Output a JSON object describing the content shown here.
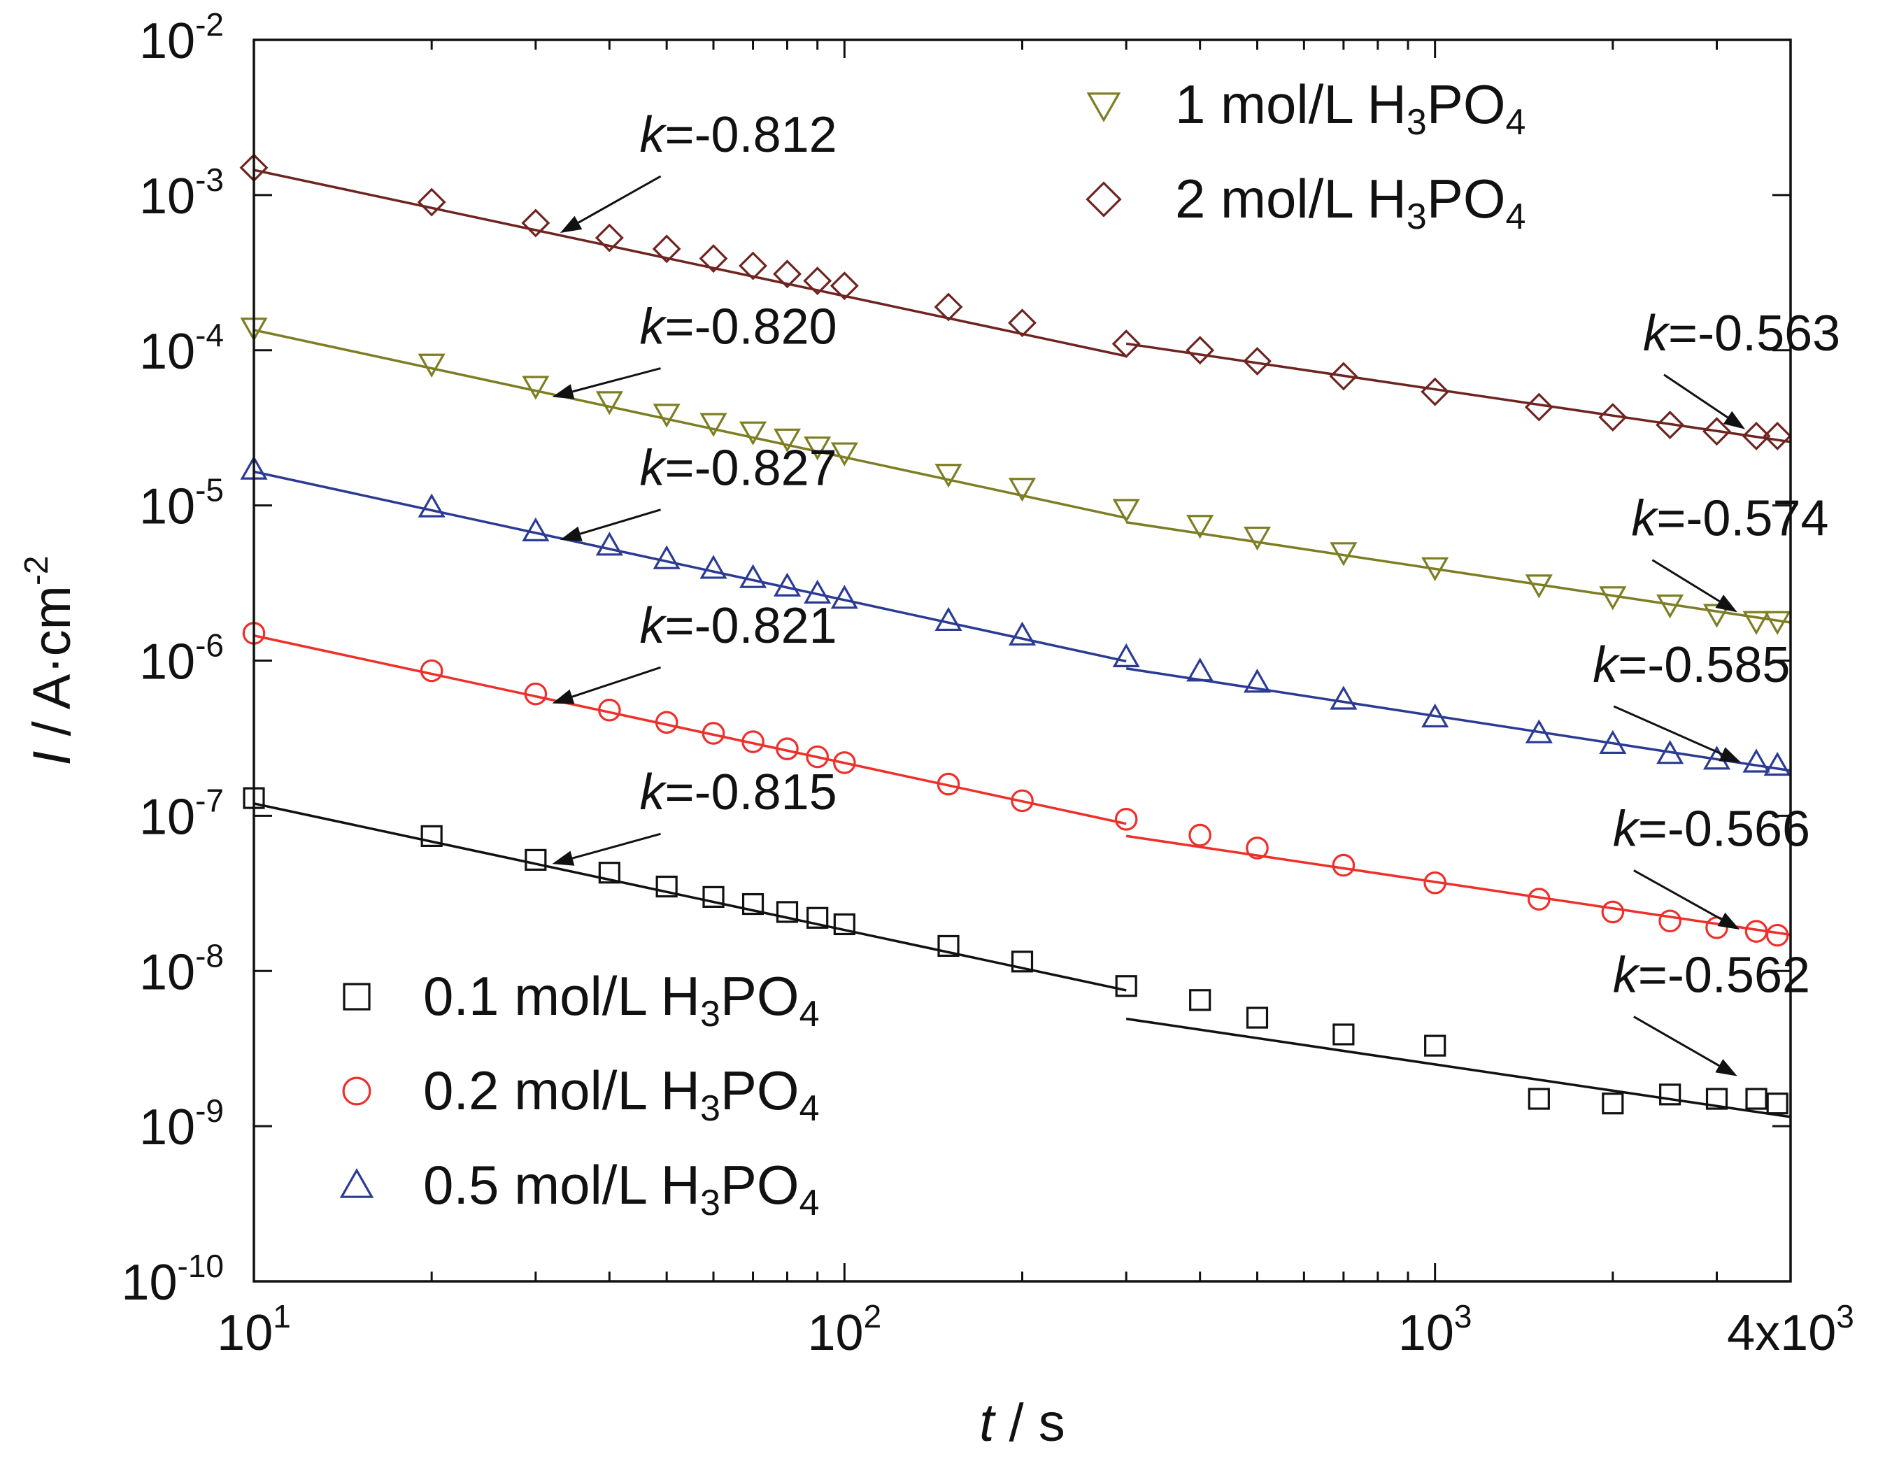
{
  "chart_data": {
    "type": "scatter",
    "title": "",
    "xlabel": {
      "italic": "t",
      "rest": " / s"
    },
    "ylabel": {
      "italic": "I",
      "rest": " / A·cm",
      "sup": "-2"
    },
    "x_scale": "log",
    "y_scale": "log",
    "xlim": [
      10,
      4000
    ],
    "ylim": [
      1e-10,
      0.01
    ],
    "grid": false,
    "x_ticks": [
      {
        "value": 10,
        "base": "10",
        "exp": "1"
      },
      {
        "value": 100,
        "base": "10",
        "exp": "2"
      },
      {
        "value": 1000,
        "base": "10",
        "exp": "3"
      },
      {
        "value": 4000,
        "base": "4x10",
        "exp": "3"
      }
    ],
    "y_ticks": [
      {
        "value": 1e-10,
        "base": "10",
        "exp": "-10"
      },
      {
        "value": 1e-09,
        "base": "10",
        "exp": "-9"
      },
      {
        "value": 1e-08,
        "base": "10",
        "exp": "-8"
      },
      {
        "value": 1e-07,
        "base": "10",
        "exp": "-7"
      },
      {
        "value": 1e-06,
        "base": "10",
        "exp": "-6"
      },
      {
        "value": 1e-05,
        "base": "10",
        "exp": "-5"
      },
      {
        "value": 0.0001,
        "base": "10",
        "exp": "-4"
      },
      {
        "value": 0.001,
        "base": "10",
        "exp": "-3"
      },
      {
        "value": 0.01,
        "base": "10",
        "exp": "-2"
      }
    ],
    "legends": [
      {
        "placement": "bottom-left",
        "items": [
          0,
          1,
          2
        ]
      },
      {
        "placement": "top-right",
        "items": [
          3,
          4
        ]
      }
    ],
    "series": [
      {
        "name": "0.1 mol/L H3PO4",
        "label": {
          "pre": "0.1 mol/L H",
          "sub1": "3",
          "mid": "PO",
          "sub2": "4"
        },
        "color": "#111111",
        "marker": "square",
        "x": [
          10,
          20,
          30,
          40,
          50,
          60,
          70,
          80,
          90,
          100,
          150,
          200,
          300,
          400,
          500,
          700,
          1000,
          1500,
          2000,
          2500,
          3000,
          3500,
          3800
        ],
        "y": [
          1.3e-07,
          7.4e-08,
          5.2e-08,
          4.3e-08,
          3.5e-08,
          3e-08,
          2.7e-08,
          2.4e-08,
          2.2e-08,
          2e-08,
          1.45e-08,
          1.15e-08,
          8e-09,
          6.5e-09,
          5e-09,
          3.9e-09,
          3.3e-09,
          1.5e-09,
          1.4e-09,
          1.6e-09,
          1.5e-09,
          1.5e-09,
          1.4e-09
        ],
        "fits": [
          {
            "k": -0.815,
            "from": 10,
            "to": 300,
            "anchor_x": 10,
            "anchor_y": 1.2e-07,
            "label": "-0.815"
          },
          {
            "k": -0.562,
            "from": 300,
            "to": 4000,
            "anchor_x": 1000,
            "anchor_y": 2.5e-09,
            "label": "-0.562"
          }
        ]
      },
      {
        "name": "0.2 mol/L H3PO4",
        "label": {
          "pre": "0.2 mol/L H",
          "sub1": "3",
          "mid": "PO",
          "sub2": "4"
        },
        "color": "#ee2f2a",
        "marker": "circle",
        "x": [
          10,
          20,
          30,
          40,
          50,
          60,
          70,
          80,
          90,
          100,
          150,
          200,
          300,
          400,
          500,
          700,
          1000,
          1500,
          2000,
          2500,
          3000,
          3500,
          3800
        ],
        "y": [
          1.5e-06,
          8.6e-07,
          6.1e-07,
          4.8e-07,
          4e-07,
          3.4e-07,
          3e-07,
          2.7e-07,
          2.4e-07,
          2.2e-07,
          1.6e-07,
          1.25e-07,
          9.5e-08,
          7.5e-08,
          6.2e-08,
          4.8e-08,
          3.7e-08,
          2.9e-08,
          2.4e-08,
          2.1e-08,
          1.9e-08,
          1.8e-08,
          1.7e-08
        ],
        "fits": [
          {
            "k": -0.821,
            "from": 10,
            "to": 300,
            "anchor_x": 10,
            "anchor_y": 1.45e-06,
            "label": "-0.821"
          },
          {
            "k": -0.566,
            "from": 300,
            "to": 4000,
            "anchor_x": 1000,
            "anchor_y": 3.75e-08,
            "label": "-0.566"
          }
        ]
      },
      {
        "name": "0.5 mol/L H3PO4",
        "label": {
          "pre": "0.5 mol/L H",
          "sub1": "3",
          "mid": "PO",
          "sub2": "4"
        },
        "color": "#2b3b93",
        "marker": "triangle-up",
        "x": [
          10,
          20,
          30,
          40,
          50,
          60,
          70,
          80,
          90,
          100,
          150,
          200,
          300,
          400,
          500,
          700,
          1000,
          1500,
          2000,
          2500,
          3000,
          3500,
          3800
        ],
        "y": [
          1.7e-05,
          9.7e-06,
          6.8e-06,
          5.5e-06,
          4.5e-06,
          3.9e-06,
          3.4e-06,
          3e-06,
          2.7e-06,
          2.5e-06,
          1.8e-06,
          1.45e-06,
          1.05e-06,
          8.5e-07,
          7.2e-07,
          5.6e-07,
          4.3e-07,
          3.4e-07,
          2.9e-07,
          2.5e-07,
          2.3e-07,
          2.2e-07,
          2.1e-07
        ],
        "fits": [
          {
            "k": -0.827,
            "from": 10,
            "to": 300,
            "anchor_x": 10,
            "anchor_y": 1.65e-05,
            "label": "-0.827"
          },
          {
            "k": -0.585,
            "from": 300,
            "to": 4000,
            "anchor_x": 1000,
            "anchor_y": 4.4e-07,
            "label": "-0.585"
          }
        ]
      },
      {
        "name": "1 mol/L H3PO4",
        "label": {
          "pre": "1 mol/L H",
          "sub1": "3",
          "mid": "PO",
          "sub2": "4"
        },
        "color": "#7d7d24",
        "marker": "triangle-down",
        "x": [
          10,
          20,
          30,
          40,
          50,
          60,
          70,
          80,
          90,
          100,
          150,
          200,
          300,
          400,
          500,
          700,
          1000,
          1500,
          2000,
          2500,
          3000,
          3500,
          3800
        ],
        "y": [
          0.00014,
          8.2e-05,
          5.9e-05,
          4.7e-05,
          3.9e-05,
          3.4e-05,
          3e-05,
          2.7e-05,
          2.4e-05,
          2.2e-05,
          1.6e-05,
          1.3e-05,
          9.5e-06,
          7.5e-06,
          6.3e-06,
          5e-06,
          4e-06,
          3.1e-06,
          2.6e-06,
          2.3e-06,
          2e-06,
          1.8e-06,
          1.8e-06
        ],
        "fits": [
          {
            "k": -0.82,
            "from": 10,
            "to": 300,
            "anchor_x": 10,
            "anchor_y": 0.000135,
            "label": "-0.820"
          },
          {
            "k": -0.574,
            "from": 300,
            "to": 4000,
            "anchor_x": 1000,
            "anchor_y": 3.9e-06,
            "label": "-0.574"
          }
        ]
      },
      {
        "name": "2 mol/L H3PO4",
        "label": {
          "pre": "2 mol/L H",
          "sub1": "3",
          "mid": "PO",
          "sub2": "4"
        },
        "color": "#6e2420",
        "marker": "diamond",
        "x": [
          10,
          20,
          30,
          40,
          50,
          60,
          70,
          80,
          90,
          100,
          150,
          200,
          300,
          400,
          500,
          700,
          1000,
          1500,
          2000,
          2500,
          3000,
          3500,
          3800
        ],
        "y": [
          0.0015,
          0.0009,
          0.00066,
          0.00053,
          0.00045,
          0.00039,
          0.00035,
          0.00031,
          0.00028,
          0.00026,
          0.00019,
          0.00015,
          0.00011,
          0.0001,
          8.5e-05,
          6.8e-05,
          5.4e-05,
          4.3e-05,
          3.7e-05,
          3.3e-05,
          3e-05,
          2.8e-05,
          2.8e-05
        ],
        "fits": [
          {
            "k": -0.812,
            "from": 10,
            "to": 300,
            "anchor_x": 10,
            "anchor_y": 0.00145,
            "label": "-0.812"
          },
          {
            "k": -0.563,
            "from": 300,
            "to": 4000,
            "anchor_x": 1000,
            "anchor_y": 5.6e-05,
            "label": "-0.563"
          }
        ]
      }
    ],
    "annotations": [
      {
        "prefix": "k",
        "text": "=-0.812",
        "target": [
          33,
          0.00057
        ],
        "text_at": [
          45,
          0.0019
        ]
      },
      {
        "prefix": "k",
        "text": "=-0.820",
        "target": [
          32,
          5e-05
        ],
        "text_at": [
          45,
          0.00011
        ]
      },
      {
        "prefix": "k",
        "text": "=-0.827",
        "target": [
          33,
          6e-06
        ],
        "text_at": [
          45,
          1.35e-05
        ]
      },
      {
        "prefix": "k",
        "text": "=-0.821",
        "target": [
          32,
          5.3e-07
        ],
        "text_at": [
          45,
          1.3e-06
        ]
      },
      {
        "prefix": "k",
        "text": "=-0.815",
        "target": [
          32,
          4.9e-08
        ],
        "text_at": [
          45,
          1.1e-07
        ]
      },
      {
        "prefix": "k",
        "text": "=-0.563",
        "target": [
          3350,
          3.1e-05
        ],
        "text_at": [
          2250,
          0.0001
        ]
      },
      {
        "prefix": "k",
        "text": "=-0.574",
        "target": [
          3250,
          2.05e-06
        ],
        "text_at": [
          2150,
          6.4e-06
        ]
      },
      {
        "prefix": "k",
        "text": "=-0.585",
        "target": [
          3300,
          2.2e-07
        ],
        "text_at": [
          1850,
          7.3e-07
        ]
      },
      {
        "prefix": "k",
        "text": "=-0.566",
        "target": [
          3280,
          1.85e-08
        ],
        "text_at": [
          2000,
          6.4e-08
        ]
      },
      {
        "prefix": "k",
        "text": "=-0.562",
        "target": [
          3250,
          2.1e-09
        ],
        "text_at": [
          2000,
          7.3e-09
        ]
      }
    ]
  }
}
